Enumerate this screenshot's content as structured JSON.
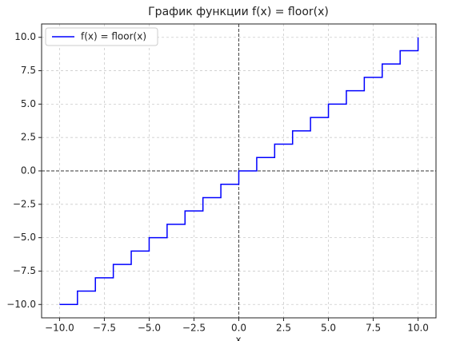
{
  "chart_data": {
    "type": "line",
    "title": "График функции f(x) = floor(x)",
    "xlabel": "x",
    "x": [
      -10,
      -9,
      -8,
      -7,
      -6,
      -5,
      -4,
      -3,
      -2,
      -1,
      0,
      1,
      2,
      3,
      4,
      5,
      6,
      7,
      8,
      9,
      10
    ],
    "series": [
      {
        "name": "f(x) = floor(x)",
        "color": "#0000ff",
        "values": [
          -10,
          -9,
          -8,
          -7,
          -6,
          -5,
          -4,
          -3,
          -2,
          -1,
          0,
          1,
          2,
          3,
          4,
          5,
          6,
          7,
          8,
          9,
          10
        ]
      }
    ],
    "drawstyle": "steps-post",
    "xlim": [
      -11,
      11
    ],
    "ylim": [
      -11,
      11
    ],
    "xticks": [
      {
        "value": -10,
        "label": "−10.0"
      },
      {
        "value": -7.5,
        "label": "−7.5"
      },
      {
        "value": -5,
        "label": "−5.0"
      },
      {
        "value": -2.5,
        "label": "−2.5"
      },
      {
        "value": 0,
        "label": "0.0"
      },
      2.5,
      {
        "value": 5,
        "label": "5.0"
      },
      7.5,
      {
        "value": 10,
        "label": "10.0"
      }
    ],
    "yticks": [
      {
        "value": -10,
        "label": "−10.0"
      },
      {
        "value": -7.5,
        "label": "−7.5"
      },
      {
        "value": -5,
        "label": "−5.0"
      },
      {
        "value": -2.5,
        "label": "−2.5"
      },
      {
        "value": 0,
        "label": "0.0"
      },
      2.5,
      {
        "value": 5,
        "label": "5.0"
      },
      7.5,
      {
        "value": 10,
        "label": "10.0"
      }
    ],
    "reference_lines": {
      "x": 0,
      "y": 0
    },
    "grid": true,
    "legend": "upper left"
  }
}
